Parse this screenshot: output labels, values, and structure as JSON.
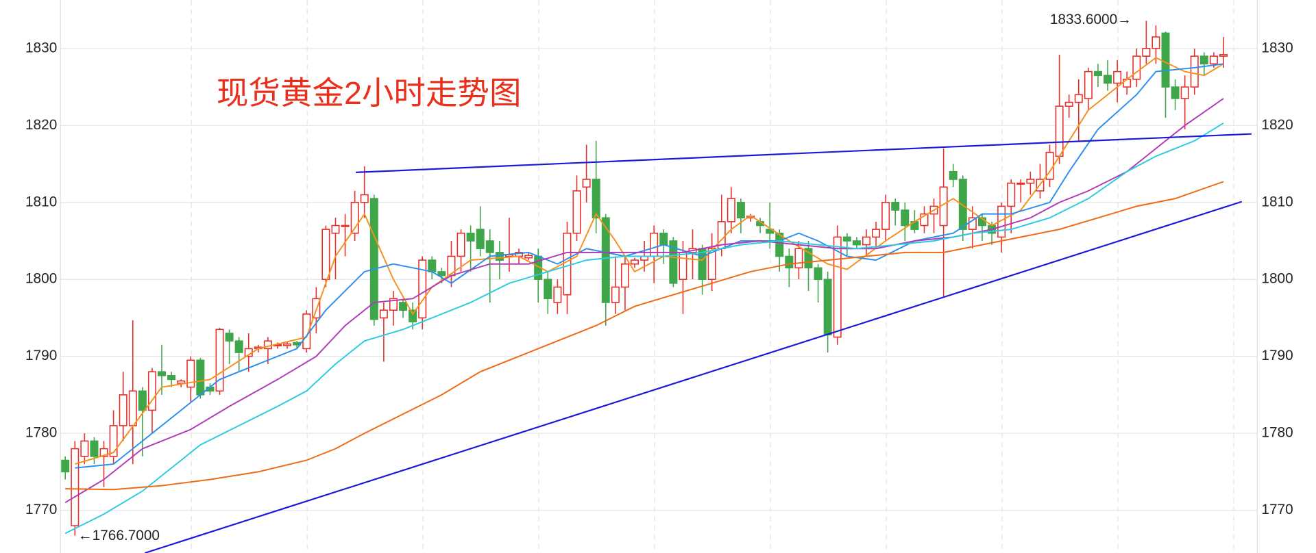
{
  "chart_data": {
    "type": "candlestick",
    "title": "现货黄金2小时走势图",
    "ylim": [
      1764.45,
      1836.3
    ],
    "yticks": [
      1770,
      1780,
      1790,
      1800,
      1810,
      1820,
      1830
    ],
    "xlim": [
      -0.5,
      123.5
    ],
    "up_color": "#e8302a",
    "down_color": "#3fa64a",
    "grid": true,
    "ohlc": [
      [
        1776.5,
        1777,
        1774,
        1775
      ],
      [
        1768,
        1779,
        1766.7,
        1778
      ],
      [
        1777,
        1780,
        1776,
        1779
      ],
      [
        1779,
        1779.5,
        1776,
        1777
      ],
      [
        1777,
        1779,
        1773,
        1778
      ],
      [
        1777,
        1783,
        1776,
        1781
      ],
      [
        1781,
        1788,
        1779,
        1785
      ],
      [
        1781,
        1794.7,
        1776,
        1785.5
      ],
      [
        1785.5,
        1786,
        1777,
        1783
      ],
      [
        1783,
        1788.5,
        1780,
        1788
      ],
      [
        1788,
        1791.5,
        1785,
        1787.5
      ],
      [
        1787.5,
        1788,
        1786,
        1787
      ],
      [
        1786.5,
        1787,
        1786,
        1786.8
      ],
      [
        1786,
        1790,
        1784,
        1789.5
      ],
      [
        1789.5,
        1789.8,
        1784.5,
        1785
      ],
      [
        1786,
        1786.5,
        1785,
        1785.5
      ],
      [
        1785.5,
        1793.7,
        1785,
        1793.5
      ],
      [
        1793,
        1793.5,
        1789,
        1792
      ],
      [
        1792,
        1792.5,
        1788,
        1790.5
      ],
      [
        1790,
        1793,
        1788,
        1791
      ],
      [
        1791,
        1791.5,
        1790.5,
        1791.2
      ],
      [
        1791,
        1792.5,
        1789,
        1792
      ],
      [
        1791.4,
        1791.8,
        1791,
        1791.5
      ],
      [
        1791.4,
        1791.9,
        1791,
        1791.6
      ],
      [
        1791.8,
        1792,
        1791,
        1791.5
      ],
      [
        1791,
        1796,
        1790.5,
        1795.5
      ],
      [
        1795,
        1799,
        1793,
        1797.5
      ],
      [
        1800,
        1807,
        1799,
        1806.5
      ],
      [
        1806,
        1808,
        1800,
        1807
      ],
      [
        1807,
        1808.5,
        1803,
        1807
      ],
      [
        1806,
        1811.5,
        1805,
        1810
      ],
      [
        1810,
        1814.7,
        1808,
        1811
      ],
      [
        1810.5,
        1811,
        1794,
        1794.8
      ],
      [
        1795,
        1797,
        1789.3,
        1796
      ],
      [
        1796,
        1798.5,
        1794,
        1797.5
      ],
      [
        1797,
        1797.5,
        1795,
        1796
      ],
      [
        1796,
        1797,
        1793.5,
        1794.5
      ],
      [
        1795,
        1803,
        1793.5,
        1802.5
      ],
      [
        1802.5,
        1803,
        1800,
        1801
      ],
      [
        1801,
        1801.5,
        1799.5,
        1800.5
      ],
      [
        1800.5,
        1805,
        1799,
        1803
      ],
      [
        1803,
        1806.5,
        1801,
        1806
      ],
      [
        1806,
        1807,
        1801,
        1805
      ],
      [
        1806.5,
        1809.5,
        1803,
        1804
      ],
      [
        1805,
        1806.5,
        1797,
        1803.5
      ],
      [
        1803.5,
        1805,
        1800,
        1802.5
      ],
      [
        1803,
        1808,
        1801,
        1803.2
      ],
      [
        1803,
        1804,
        1802,
        1803.5
      ],
      [
        1802.8,
        1803.4,
        1802.5,
        1803.1
      ],
      [
        1803,
        1804,
        1797,
        1800
      ],
      [
        1800,
        1801,
        1795.5,
        1797.5
      ],
      [
        1797,
        1800,
        1795.5,
        1799
      ],
      [
        1798,
        1807.5,
        1795.5,
        1806
      ],
      [
        1806,
        1813.5,
        1805,
        1811.5
      ],
      [
        1812,
        1817.5,
        1810,
        1813
      ],
      [
        1813,
        1818,
        1806,
        1808
      ],
      [
        1808,
        1808.5,
        1794,
        1797
      ],
      [
        1797,
        1803,
        1795.5,
        1799
      ],
      [
        1799,
        1803,
        1796,
        1802
      ],
      [
        1802,
        1802.8,
        1801.5,
        1802.5
      ],
      [
        1802.5,
        1805,
        1801,
        1803
      ],
      [
        1803,
        1807,
        1799.5,
        1806
      ],
      [
        1806,
        1806.5,
        1802,
        1804.5
      ],
      [
        1805,
        1805.5,
        1799,
        1799.5
      ],
      [
        1800,
        1805,
        1795.5,
        1803.5
      ],
      [
        1803.5,
        1806.5,
        1800,
        1804
      ],
      [
        1804,
        1804.5,
        1798,
        1800
      ],
      [
        1800,
        1806,
        1798.5,
        1804
      ],
      [
        1804,
        1811,
        1803,
        1807.5
      ],
      [
        1807.5,
        1812,
        1806,
        1810.5
      ],
      [
        1810,
        1810.5,
        1806,
        1808
      ],
      [
        1808,
        1808.5,
        1807.5,
        1808.2
      ],
      [
        1807.5,
        1808,
        1806,
        1807
      ],
      [
        1806.5,
        1810,
        1804,
        1806
      ],
      [
        1806,
        1806.5,
        1801,
        1803
      ],
      [
        1803,
        1804,
        1799,
        1801.5
      ],
      [
        1801.5,
        1805,
        1800,
        1804
      ],
      [
        1804,
        1805,
        1798.5,
        1801.5
      ],
      [
        1801.5,
        1802,
        1797,
        1800
      ],
      [
        1800,
        1801,
        1790.5,
        1792.8
      ],
      [
        1792.5,
        1807,
        1791.5,
        1805.5
      ],
      [
        1805.5,
        1806,
        1803,
        1805
      ],
      [
        1805,
        1805.5,
        1804,
        1804.5
      ],
      [
        1804.5,
        1806.5,
        1803,
        1805.5
      ],
      [
        1805.5,
        1807.5,
        1804,
        1806.5
      ],
      [
        1806.5,
        1811,
        1805,
        1810
      ],
      [
        1810,
        1810.5,
        1807,
        1809
      ],
      [
        1809,
        1810,
        1805,
        1807
      ],
      [
        1807.5,
        1809,
        1806,
        1806.5
      ],
      [
        1807,
        1809.5,
        1806,
        1808.5
      ],
      [
        1808.5,
        1810.5,
        1806,
        1809.5
      ],
      [
        1807,
        1817,
        1797.8,
        1812
      ],
      [
        1814,
        1815,
        1812,
        1813
      ],
      [
        1813,
        1813.5,
        1805,
        1806.5
      ],
      [
        1806.5,
        1809.5,
        1804,
        1808
      ],
      [
        1808,
        1808.5,
        1805,
        1807
      ],
      [
        1807,
        1807.5,
        1804.5,
        1806
      ],
      [
        1805.5,
        1810,
        1803.5,
        1809.5
      ],
      [
        1809.5,
        1813,
        1806,
        1812.5
      ],
      [
        1812.4,
        1813,
        1810,
        1812.5
      ],
      [
        1812.5,
        1814,
        1811,
        1813
      ],
      [
        1811.5,
        1815,
        1810.5,
        1813
      ],
      [
        1813,
        1817.5,
        1812,
        1816.5
      ],
      [
        1816,
        1829.2,
        1815,
        1822.5
      ],
      [
        1822.5,
        1824,
        1821,
        1823
      ],
      [
        1823,
        1826,
        1818,
        1824
      ],
      [
        1823.5,
        1827.5,
        1822,
        1827
      ],
      [
        1827,
        1828,
        1825,
        1826.5
      ],
      [
        1826.5,
        1828.5,
        1824.5,
        1825.5
      ],
      [
        1825.5,
        1828.5,
        1823,
        1827
      ],
      [
        1825,
        1827,
        1824,
        1826
      ],
      [
        1826,
        1830,
        1825,
        1829
      ],
      [
        1829,
        1833.6,
        1828,
        1830
      ],
      [
        1830,
        1833,
        1828,
        1831.5
      ],
      [
        1832,
        1832.2,
        1821,
        1825
      ],
      [
        1825,
        1826,
        1822,
        1823.5
      ],
      [
        1823.5,
        1826.5,
        1819.5,
        1825
      ],
      [
        1825,
        1830,
        1824,
        1829
      ],
      [
        1829,
        1829.5,
        1826.5,
        1828
      ],
      [
        1828,
        1829.5,
        1827.5,
        1829
      ],
      [
        1829,
        1831.5,
        1827.5,
        1829.2
      ]
    ],
    "series": [
      {
        "color": "#f5901e",
        "x": [
          1,
          5,
          10,
          15,
          20,
          25,
          28,
          31,
          34,
          36,
          38,
          42,
          47,
          50,
          53,
          55,
          57,
          59,
          62,
          66,
          69,
          71,
          75,
          79,
          81,
          85,
          88,
          92,
          96,
          99,
          102,
          106,
          110,
          113,
          116,
          118,
          120
        ],
        "values": [
          1776,
          1777.5,
          1786,
          1787,
          1791,
          1792.5,
          1803,
          1808.5,
          1800,
          1795.5,
          1799,
          1802.5,
          1803,
          1801,
          1803,
          1808.5,
          1805,
          1801,
          1803,
          1802.5,
          1806.5,
          1808.3,
          1805,
          1802,
          1801.3,
          1805,
          1807.5,
          1810.5,
          1807,
          1809,
          1814,
          1822,
          1826,
          1828.8,
          1827,
          1826.5,
          1828
        ]
      },
      {
        "color": "#2a8ff0",
        "x": [
          1,
          5,
          8,
          12,
          16,
          20,
          24,
          27,
          31,
          34,
          38,
          40,
          44,
          48,
          51,
          54,
          58,
          62,
          66,
          70,
          74,
          76,
          78,
          81,
          84,
          88,
          92,
          95,
          98,
          102,
          104,
          107,
          111,
          113,
          117,
          120
        ],
        "values": [
          1775.5,
          1776,
          1779,
          1783,
          1787,
          1789,
          1791,
          1796,
          1801,
          1802,
          1801,
          1799.5,
          1803,
          1803.5,
          1802,
          1804,
          1803,
          1804.5,
          1803,
          1805,
          1805,
          1806,
          1805,
          1803,
          1802.5,
          1805,
          1806,
          1808.5,
          1808.5,
          1810,
          1814,
          1819.5,
          1824,
          1827,
          1827.5,
          1828
        ]
      },
      {
        "color": "#b03ab8",
        "x": [
          0,
          4,
          8,
          13,
          17,
          22,
          26,
          29,
          32,
          36,
          40,
          44,
          48,
          52,
          56,
          60,
          64,
          68,
          72,
          76,
          80,
          84,
          88,
          92,
          96,
          100,
          103,
          106,
          110,
          113,
          116,
          120
        ],
        "values": [
          1771,
          1774,
          1778,
          1780.5,
          1783.5,
          1787,
          1790,
          1794,
          1797,
          1797.5,
          1800.5,
          1802,
          1802,
          1803.5,
          1803.5,
          1803.5,
          1803.5,
          1804.5,
          1805,
          1804.5,
          1804,
          1804,
          1805,
          1805.5,
          1806.5,
          1808,
          1810,
          1811.5,
          1814,
          1817,
          1820,
          1823.5
        ]
      },
      {
        "color": "#2ccbe0",
        "x": [
          0,
          4,
          8,
          11,
          14,
          18,
          22,
          25,
          28,
          31,
          35,
          38,
          42,
          46,
          50,
          54,
          58,
          62,
          66,
          70,
          74,
          78,
          82,
          86,
          90,
          94,
          98,
          102,
          106,
          110,
          113,
          117,
          120
        ],
        "values": [
          1767,
          1769.5,
          1772.5,
          1775.5,
          1778.5,
          1781,
          1783.5,
          1785.5,
          1789,
          1792,
          1793.5,
          1795,
          1797,
          1799.5,
          1801,
          1802.5,
          1803,
          1803,
          1803.5,
          1804.5,
          1805,
          1804.5,
          1804,
          1804.5,
          1805,
          1806,
          1806.5,
          1808,
          1810.5,
          1814,
          1816,
          1818,
          1820.3
        ]
      },
      {
        "color": "#f06a14",
        "x": [
          0,
          5,
          10,
          15,
          20,
          25,
          28,
          31,
          35,
          39,
          43,
          47,
          51,
          55,
          59,
          63,
          67,
          71,
          75,
          79,
          83,
          87,
          91,
          95,
          99,
          103,
          107,
          111,
          115,
          120
        ],
        "values": [
          1772.8,
          1772.7,
          1773.2,
          1774,
          1775,
          1776.5,
          1778,
          1780,
          1782.5,
          1785,
          1788,
          1790,
          1792,
          1794,
          1796.5,
          1798,
          1799.5,
          1801,
          1802,
          1802.5,
          1803,
          1803.5,
          1803.5,
          1804.5,
          1805.5,
          1806.5,
          1808,
          1809.5,
          1810.5,
          1812.7
        ]
      }
    ],
    "trendlines": [
      {
        "color": "#1a1ad8",
        "x": [
          30.1,
          122.9
        ],
        "values": [
          1813.9,
          1818.9
        ]
      },
      {
        "color": "#1a1ad8",
        "x": [
          8.25,
          121.9
        ],
        "values": [
          1764.45,
          1810.1
        ]
      }
    ],
    "annotations": [
      {
        "text": "1833.6000→"
      },
      {
        "text": "←1766.7000"
      }
    ]
  }
}
